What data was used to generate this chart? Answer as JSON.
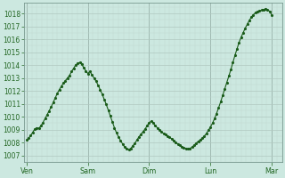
{
  "bg_color": "#cce8e0",
  "plot_bg_color": "#cce8e0",
  "line_color": "#1a5c1a",
  "marker": ".",
  "marker_size": 2.5,
  "line_width": 0.8,
  "ylim": [
    1006.5,
    1018.8
  ],
  "yticks": [
    1007,
    1008,
    1009,
    1010,
    1011,
    1012,
    1013,
    1014,
    1015,
    1016,
    1017,
    1018
  ],
  "xtick_labels": [
    "Ven",
    "Sam",
    "Dim",
    "Lun",
    "Mar"
  ],
  "xtick_positions": [
    0,
    24,
    48,
    72,
    96
  ],
  "grid_color_major": "#b0c8c0",
  "grid_color_minor": "#c0d8d0",
  "vline_color": "#7a9a90",
  "tick_color": "#226622",
  "pressure_values": [
    1008.2,
    1008.35,
    1008.55,
    1008.8,
    1009.05,
    1009.15,
    1009.1,
    1009.3,
    1009.55,
    1009.85,
    1010.15,
    1010.45,
    1010.75,
    1011.1,
    1011.45,
    1011.8,
    1012.1,
    1012.35,
    1012.6,
    1012.8,
    1013.0,
    1013.2,
    1013.5,
    1013.75,
    1014.0,
    1014.15,
    1014.2,
    1014.05,
    1013.8,
    1013.55,
    1013.35,
    1013.5,
    1013.25,
    1013.0,
    1012.75,
    1012.45,
    1012.1,
    1011.75,
    1011.35,
    1010.95,
    1010.5,
    1010.05,
    1009.6,
    1009.15,
    1008.75,
    1008.45,
    1008.15,
    1007.9,
    1007.65,
    1007.5,
    1007.45,
    1007.55,
    1007.75,
    1007.95,
    1008.2,
    1008.45,
    1008.65,
    1008.85,
    1009.05,
    1009.3,
    1009.55,
    1009.65,
    1009.5,
    1009.3,
    1009.15,
    1009.0,
    1008.85,
    1008.7,
    1008.6,
    1008.5,
    1008.4,
    1008.3,
    1008.15,
    1008.0,
    1007.9,
    1007.8,
    1007.7,
    1007.6,
    1007.55,
    1007.5,
    1007.55,
    1007.65,
    1007.8,
    1007.95,
    1008.1,
    1008.2,
    1008.35,
    1008.5,
    1008.7,
    1008.95,
    1009.2,
    1009.5,
    1009.85,
    1010.25,
    1010.7,
    1011.15,
    1011.65,
    1012.15,
    1012.65,
    1013.15,
    1013.65,
    1014.2,
    1014.75,
    1015.25,
    1015.75,
    1016.15,
    1016.5,
    1016.85,
    1017.15,
    1017.45,
    1017.7,
    1017.9,
    1018.05,
    1018.15,
    1018.2,
    1018.25,
    1018.3,
    1018.35,
    1018.3,
    1018.15,
    1017.9
  ]
}
